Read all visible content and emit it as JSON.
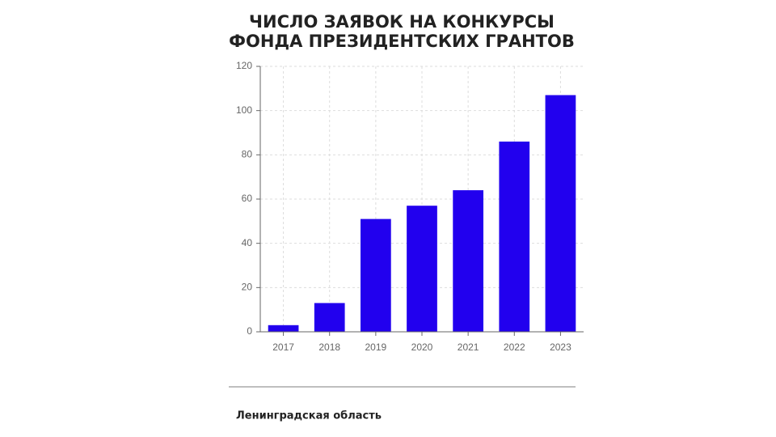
{
  "chart_data": {
    "type": "bar",
    "title": [
      "ЧИСЛО ЗАЯВОК НА КОНКУРСЫ",
      "ФОНДА ПРЕЗИДЕНТСКИХ ГРАНТОВ"
    ],
    "categories": [
      "2017",
      "2018",
      "2019",
      "2020",
      "2021",
      "2022",
      "2023"
    ],
    "values": [
      3,
      13,
      51,
      57,
      64,
      86,
      107
    ],
    "color": "#2200ee",
    "ylim": [
      0,
      120
    ],
    "yticks": [
      0,
      20,
      40,
      60,
      80,
      100,
      120
    ],
    "grid": true,
    "footer": "Ленинградская область"
  }
}
